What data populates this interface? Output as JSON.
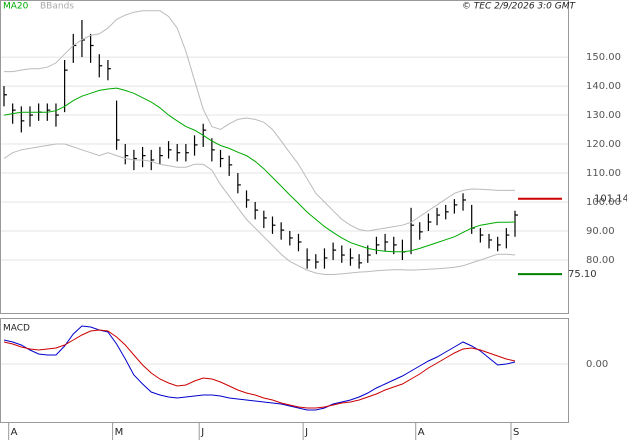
{
  "chart_data": [
    {
      "type": "ohlc",
      "credit": "© TEC 2/9/2026 3:0 GMT",
      "ylim": [
        61.7,
        169.7
      ],
      "yticks": [
        {
          "value": 80,
          "label": "80.00"
        },
        {
          "value": 90,
          "label": "90.00"
        },
        {
          "value": 100,
          "label": "100.00"
        },
        {
          "value": 110,
          "label": "110.00"
        },
        {
          "value": 120,
          "label": "120.00"
        },
        {
          "value": 130,
          "label": "130.00"
        },
        {
          "value": 140,
          "label": "140.00"
        },
        {
          "value": 150,
          "label": "150.00"
        }
      ],
      "grid": true,
      "ohlc": {
        "color": "#000000",
        "high": [
          140,
          134,
          133,
          133,
          134,
          134,
          134,
          149,
          158,
          162.8,
          158,
          151,
          149,
          135,
          120,
          118,
          119,
          118,
          119,
          121,
          120,
          120,
          123,
          127,
          122,
          118,
          116,
          110,
          104,
          100,
          97,
          95,
          93,
          90,
          89,
          84,
          82,
          84,
          86,
          85,
          84,
          82,
          85,
          88,
          89,
          88,
          87,
          98,
          93,
          96,
          98,
          99,
          101,
          103,
          99,
          91,
          89,
          88,
          91,
          97
        ],
        "low": [
          133,
          127,
          124,
          126,
          128,
          128,
          126,
          131,
          148,
          150,
          148,
          143,
          142,
          118,
          113,
          111,
          112,
          111,
          113,
          115,
          114,
          114,
          116,
          119,
          114,
          112,
          109,
          103,
          98,
          94,
          91,
          89,
          87,
          85,
          83,
          77,
          77,
          77,
          80,
          79,
          78,
          77,
          79,
          82,
          83,
          82,
          80,
          82,
          87,
          90,
          92,
          94,
          96,
          97,
          89,
          86,
          84,
          83,
          84,
          88
        ],
        "close": [
          137,
          131.7,
          128,
          130,
          131,
          131.7,
          130,
          145.5,
          154,
          155.9,
          154,
          147,
          146,
          121.4,
          116,
          115,
          116,
          114.5,
          116,
          118,
          117,
          117,
          119.7,
          124.8,
          118,
          115,
          112.8,
          105.9,
          100.7,
          97.2,
          94.5,
          92,
          90.3,
          87.6,
          86.2,
          80,
          79.3,
          80.7,
          83.4,
          81.7,
          80.7,
          79,
          81.7,
          85.2,
          86.2,
          85.2,
          82.8,
          92,
          89.7,
          93.1,
          95.5,
          96.6,
          99,
          100.7,
          91,
          88.6,
          86.9,
          85.2,
          88.6,
          95.5
        ]
      },
      "series": [
        {
          "name": "MA20",
          "color": "#00aa00",
          "values": [
            130,
            130.5,
            131,
            131,
            131,
            131,
            131.5,
            133,
            135,
            136.5,
            137.5,
            138.5,
            139,
            139.3,
            138.5,
            137.5,
            136,
            134.5,
            132.5,
            130,
            128,
            126,
            124.8,
            123,
            121,
            119.5,
            118.5,
            117.2,
            116,
            114,
            111.5,
            108.5,
            105.5,
            102.4,
            99.5,
            96.5,
            94,
            91.5,
            89.5,
            87.6,
            86,
            85,
            84,
            83.4,
            83,
            82.8,
            82.8,
            83.2,
            84,
            85,
            86,
            87,
            88,
            89.5,
            91,
            92,
            92.5,
            93,
            93,
            93.1
          ]
        },
        {
          "name": "BBands",
          "color": "#bbbbbb",
          "upper": [
            145,
            145,
            145.5,
            146,
            146,
            146.5,
            148,
            151,
            154,
            156,
            157.5,
            158,
            160,
            163,
            164.5,
            165.5,
            166,
            166,
            166,
            164,
            160,
            152,
            142,
            132,
            126,
            125,
            127,
            128.5,
            129,
            128.5,
            127.5,
            125,
            121,
            117,
            113,
            108,
            103,
            100,
            97,
            94,
            92,
            90.5,
            90,
            90.5,
            91,
            91.5,
            92,
            93,
            95,
            97,
            99,
            101,
            103,
            104,
            104.5,
            104.4,
            104.2,
            104,
            104,
            104
          ],
          "lower": [
            115,
            117,
            118,
            118.5,
            119,
            119.5,
            120,
            120,
            119,
            118,
            117,
            116,
            117,
            116,
            115,
            114.5,
            114.5,
            114,
            113,
            112.5,
            112,
            112,
            113,
            113,
            111,
            106,
            102,
            98,
            94,
            91,
            88,
            85,
            82,
            79.5,
            78,
            76.5,
            75.5,
            75,
            75,
            75.2,
            75.5,
            75.8,
            76,
            76.3,
            76.5,
            76.6,
            76.6,
            76.5,
            76.6,
            76.8,
            77,
            77.2,
            77.5,
            78,
            79,
            80,
            81,
            82,
            82,
            81.7
          ]
        }
      ],
      "levels": [
        {
          "value": 101.14,
          "color": "#cc0000"
        },
        {
          "value": 75.1,
          "label": "75.10",
          "color": "#008000"
        }
      ]
    },
    {
      "type": "line",
      "title": "MACD",
      "ylim": [
        -5.8,
        4.6
      ],
      "yticks": [
        {
          "value": 0,
          "label": "0.00"
        }
      ],
      "categories": [
        null,
        "A",
        null,
        null,
        null,
        null,
        null,
        null,
        null,
        null,
        null,
        null,
        null,
        "M",
        null,
        null,
        null,
        null,
        null,
        null,
        null,
        null,
        null,
        "J",
        null,
        null,
        null,
        null,
        null,
        null,
        null,
        null,
        null,
        null,
        null,
        "J",
        null,
        null,
        null,
        null,
        null,
        null,
        null,
        null,
        null,
        null,
        null,
        null,
        "A",
        null,
        null,
        null,
        null,
        null,
        null,
        null,
        null,
        null,
        null,
        "S"
      ],
      "series": [
        {
          "color": "#0000cc",
          "values": [
            2.4,
            2.2,
            1.9,
            1.4,
            1.0,
            0.9,
            0.9,
            1.8,
            3.0,
            3.8,
            3.7,
            3.4,
            3.2,
            2.0,
            0.5,
            -1.1,
            -2.0,
            -2.8,
            -3.1,
            -3.3,
            -3.4,
            -3.3,
            -3.2,
            -3.1,
            -3.1,
            -3.2,
            -3.4,
            -3.5,
            -3.6,
            -3.7,
            -3.8,
            -3.9,
            -4.0,
            -4.2,
            -4.4,
            -4.6,
            -4.6,
            -4.4,
            -4.0,
            -3.8,
            -3.6,
            -3.3,
            -2.9,
            -2.4,
            -2.0,
            -1.6,
            -1.2,
            -0.7,
            -0.2,
            0.3,
            0.7,
            1.2,
            1.7,
            2.2,
            1.8,
            1.3,
            0.6,
            -0.1,
            0.0,
            0.2
          ]
        },
        {
          "color": "#cc0000",
          "values": [
            2.2,
            2.0,
            1.7,
            1.5,
            1.4,
            1.5,
            1.6,
            1.9,
            2.4,
            2.9,
            3.3,
            3.4,
            3.3,
            2.7,
            1.9,
            0.9,
            -0.1,
            -0.9,
            -1.5,
            -1.9,
            -2.2,
            -2.1,
            -1.7,
            -1.4,
            -1.5,
            -1.8,
            -2.2,
            -2.6,
            -2.9,
            -3.1,
            -3.4,
            -3.6,
            -3.9,
            -4.1,
            -4.3,
            -4.4,
            -4.4,
            -4.3,
            -4.1,
            -3.9,
            -3.8,
            -3.6,
            -3.3,
            -3.0,
            -2.6,
            -2.3,
            -2.0,
            -1.5,
            -1.0,
            -0.4,
            0.1,
            0.6,
            1.1,
            1.5,
            1.6,
            1.4,
            1.1,
            0.8,
            0.5,
            0.3
          ]
        }
      ]
    }
  ]
}
